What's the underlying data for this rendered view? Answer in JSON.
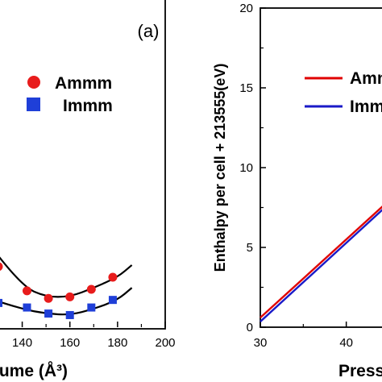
{
  "chart_data": [
    {
      "type": "scatter",
      "panel_label": "(a)",
      "xlabel": "lume (Å³)",
      "ylabel": "",
      "x_ticks": [
        "140",
        "160",
        "180",
        "200"
      ],
      "xlim": [
        130,
        200
      ],
      "ylim": [
        0,
        1
      ],
      "legend_placement": "top-right",
      "legend": [
        "Ammm",
        "Immm"
      ],
      "series": [
        {
          "name": "Ammm",
          "marker": "circle",
          "color": "#e81c1c",
          "points": [
            [
              130,
              0.2
            ],
            [
              142,
              0.12
            ],
            [
              151,
              0.095
            ],
            [
              160,
              0.1
            ],
            [
              169,
              0.125
            ],
            [
              178,
              0.165
            ]
          ],
          "fit": [
            [
              130,
              0.235
            ],
            [
              140,
              0.135
            ],
            [
              150,
              0.1
            ],
            [
              160,
              0.1
            ],
            [
              170,
              0.13
            ],
            [
              180,
              0.165
            ],
            [
              186,
              0.205
            ]
          ]
        },
        {
          "name": "Immm",
          "marker": "square",
          "color": "#1f3fd8",
          "points": [
            [
              130,
              0.08
            ],
            [
              142,
              0.065
            ],
            [
              151,
              0.045
            ],
            [
              160,
              0.04
            ],
            [
              169,
              0.065
            ],
            [
              178,
              0.09
            ]
          ],
          "fit": [
            [
              130,
              0.085
            ],
            [
              140,
              0.06
            ],
            [
              150,
              0.045
            ],
            [
              160,
              0.04
            ],
            [
              170,
              0.06
            ],
            [
              180,
              0.09
            ],
            [
              186,
              0.13
            ]
          ]
        }
      ]
    },
    {
      "type": "line",
      "xlabel": "Press",
      "ylabel": "Enthalpy per cell + 213555(eV)",
      "x_ticks": [
        "30",
        "40"
      ],
      "y_ticks": [
        "0",
        "5",
        "10",
        "15",
        "20"
      ],
      "xlim": [
        30,
        45
      ],
      "ylim": [
        0,
        20
      ],
      "legend_placement": "top-right",
      "legend": [
        "Amm",
        "Imm"
      ],
      "series": [
        {
          "name": "Ammm",
          "color": "#e00000",
          "x": [
            30,
            45
          ],
          "y": [
            0.6,
            7.95
          ]
        },
        {
          "name": "Immm",
          "color": "#1a1ac8",
          "x": [
            30,
            45
          ],
          "y": [
            0.35,
            7.75
          ]
        }
      ]
    }
  ]
}
